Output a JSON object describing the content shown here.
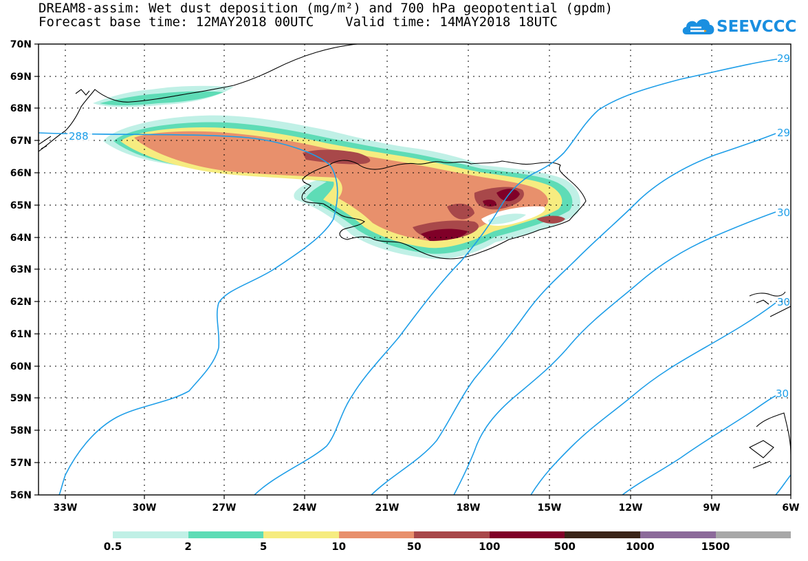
{
  "title": {
    "line1": "DREAM8-assim: Wet dust deposition (mg/m²) and 700 hPa geopotential (gpdm)",
    "line2": "Forecast base time: 12MAY2018 00UTC    Valid time: 14MAY2018 18UTC"
  },
  "logo": {
    "text": "SEEVCCC",
    "icon": "cloud-icon",
    "color": "#1a8fe0"
  },
  "axes": {
    "lat_labels": [
      "70N",
      "69N",
      "68N",
      "67N",
      "66N",
      "65N",
      "64N",
      "63N",
      "62N",
      "61N",
      "60N",
      "59N",
      "58N",
      "57N",
      "56N"
    ],
    "lon_labels": [
      "33W",
      "30W",
      "27W",
      "24W",
      "21W",
      "18W",
      "15W",
      "12W",
      "9W",
      "6W"
    ],
    "lat_range": [
      56,
      70
    ],
    "lon_range": [
      -34.1,
      -6
    ]
  },
  "contours": {
    "color": "#1e9ee8",
    "labels": [
      "288",
      "29",
      "29",
      "30",
      "30",
      "30"
    ]
  },
  "legend": {
    "labels": [
      "0.5",
      "2",
      "5",
      "10",
      "50",
      "100",
      "500",
      "1000",
      "1500"
    ],
    "colors": [
      "#c0f0e6",
      "#5edcb6",
      "#f6ec80",
      "#e8906c",
      "#a8484a",
      "#800028",
      "#3a2418",
      "#8c6a9a",
      "#a8a8a8"
    ]
  }
}
